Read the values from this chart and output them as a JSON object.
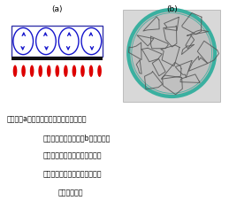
{
  "fig_width": 2.59,
  "fig_height": 2.44,
  "dpi": 100,
  "bg_color": "#ffffff",
  "label_a": "(a)",
  "label_b": "(b)",
  "caption_line1": "図１　（a）下から加熱した油の層で発生",
  "caption_line2": "するベナール対流、（b）シャーレ",
  "caption_line3": "ー内のサラダ油（アルミ粉末添",
  "caption_line4": "加）で観測されたベナールセル",
  "caption_line5": "（筆者撮影）",
  "box_edgecolor": "#3333aa",
  "box_facecolor": "#ffffff",
  "bar_color": "#111111",
  "arrow_color": "#1515cc",
  "flame_color": "#dd0000",
  "dish_rim_color": "#3ab0a0",
  "dish_bg": "#b8b8b8",
  "cell_line_color": "#555555",
  "panel_bg_b": "#d0d0d0",
  "caption_color": "#000000"
}
